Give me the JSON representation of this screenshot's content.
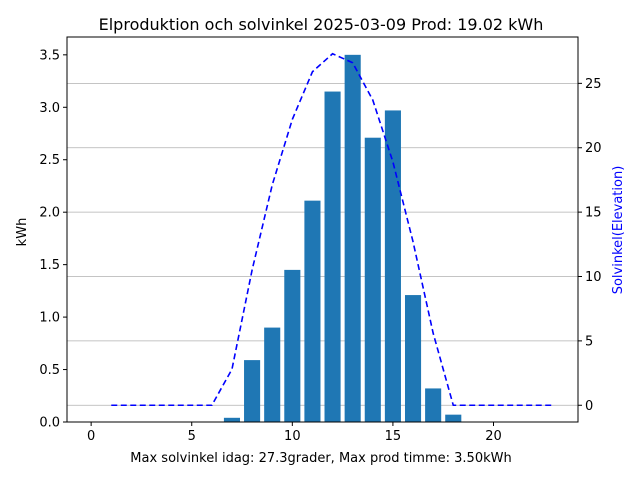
{
  "chart_data": {
    "type": "bar",
    "title": "Elproduktion och solvinkel 2025-03-09 Prod: 19.02 kWh",
    "xlabel": "Max solvinkel idag: 27.3grader, Max prod timme: 3.50kWh",
    "ylabel": "kWh",
    "y2label": "Solvinkel(Elevation)",
    "xlim": [
      -1.2,
      24.2
    ],
    "ylim": [
      0,
      3.67
    ],
    "y2lim": [
      -1.3,
      28.6
    ],
    "xticks": [
      0,
      5,
      10,
      15,
      20
    ],
    "yticks": [
      0.0,
      0.5,
      1.0,
      1.5,
      2.0,
      2.5,
      3.0,
      3.5
    ],
    "y2ticks": [
      0,
      5,
      10,
      15,
      20,
      25
    ],
    "grid": "horizontal lines at secondary-axis ticks",
    "bar_color": "#1f77b4",
    "line_color": "#0000ff",
    "y2label_color": "#0000ff",
    "series": [
      {
        "type": "bar",
        "axis": "left",
        "x": [
          7,
          8,
          9,
          10,
          11,
          12,
          13,
          14,
          15,
          16,
          17,
          18
        ],
        "values": [
          0.04,
          0.59,
          0.9,
          1.45,
          2.11,
          3.15,
          3.5,
          2.71,
          2.97,
          1.21,
          0.32,
          0.07
        ]
      },
      {
        "type": "line",
        "axis": "right",
        "style": "dashed",
        "x": [
          1,
          2,
          3,
          4,
          5,
          6,
          7,
          8,
          9,
          10,
          11,
          12,
          13,
          14,
          15,
          16,
          17,
          18,
          19,
          20,
          21,
          22,
          23
        ],
        "values": [
          0,
          0,
          0,
          0,
          0,
          0,
          2.8,
          10.5,
          17.1,
          22.2,
          25.9,
          27.3,
          26.6,
          23.7,
          18.9,
          12.7,
          5.6,
          0,
          0,
          0,
          0,
          0,
          0
        ]
      }
    ]
  }
}
